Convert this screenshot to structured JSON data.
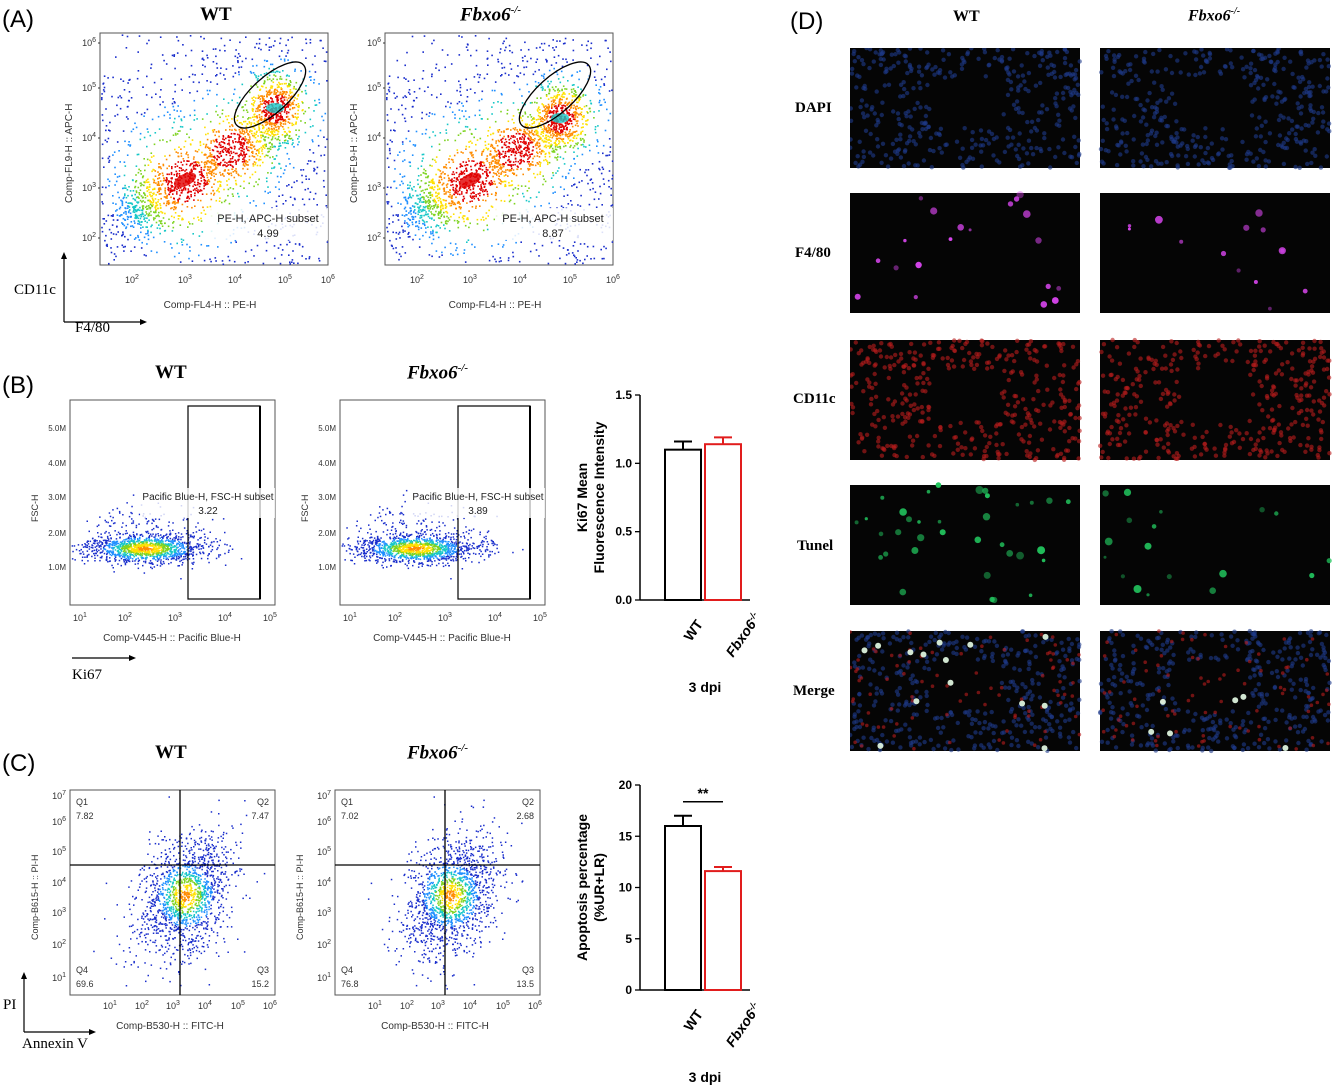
{
  "panels": {
    "A": {
      "letter": "(A)",
      "titles": [
        "WT",
        "Fbxo6"
      ],
      "title_superscript": "-/-",
      "ylabel": "Comp-FL9-H :: APC-H",
      "xlabel": "Comp-FL4-H :: PE-H",
      "yticks": [
        "10",
        "10",
        "10",
        "10",
        "10"
      ],
      "ytick_exp": [
        "6",
        "5",
        "4",
        "3",
        "2"
      ],
      "xticks_exp": [
        "2",
        "3",
        "4",
        "5",
        "6"
      ],
      "gate_name": "PE-H, APC-H subset",
      "gate_values": [
        "4.99",
        "8.87"
      ],
      "marker_y": "CD11c",
      "marker_x": "F4/80"
    },
    "B": {
      "letter": "(B)",
      "titles": [
        "WT",
        "Fbxo6"
      ],
      "title_superscript": "-/-",
      "ylabel": "FSC-H",
      "xlabel": "Comp-V445-H :: Pacific Blue-H",
      "yticks": [
        "5.0M",
        "4.0M",
        "3.0M",
        "2.0M",
        "1.0M"
      ],
      "xticks_exp": [
        "1",
        "2",
        "3",
        "4",
        "5"
      ],
      "gate_name": "Pacific Blue-H, FSC-H subset",
      "gate_values": [
        "3.22",
        "3.89"
      ],
      "marker_x": "Ki67",
      "bar_ylabel_line1": "Ki67 Mean",
      "bar_ylabel_line2": "Fluorescence Intensity",
      "dpi": "3 dpi"
    },
    "C": {
      "letter": "(C)",
      "titles": [
        "WT",
        "Fbxo6"
      ],
      "title_superscript": "-/-",
      "ylabel": "Comp-B615-H :: PI-H",
      "xlabel": "Comp-B530-H :: FITC-H",
      "yticks_exp": [
        "7",
        "6",
        "5",
        "4",
        "3",
        "2",
        "1"
      ],
      "xticks_exp": [
        "1",
        "2",
        "3",
        "4",
        "5",
        "6"
      ],
      "quadrant_names": [
        "Q1",
        "Q2",
        "Q3",
        "Q4"
      ],
      "quadrants": [
        {
          "Q1": "7.82",
          "Q2": "7.47",
          "Q3": "15.2",
          "Q4": "69.6"
        },
        {
          "Q1": "7.02",
          "Q2": "2.68",
          "Q3": "13.5",
          "Q4": "76.8"
        }
      ],
      "marker_y": "PI",
      "marker_x": "Annexin V",
      "bar_ylabel_line1": "Apoptosis percentage",
      "bar_ylabel_line2": "(%UR+LR)",
      "significance": "**",
      "dpi": "3 dpi"
    },
    "D": {
      "letter": "(D)",
      "titles": [
        "WT",
        "Fbxo6"
      ],
      "title_superscript": "-/-",
      "rows": [
        "DAPI",
        "F4/80",
        "CD11c",
        "Tunel",
        "Merge"
      ],
      "row_colors": {
        "DAPI": "#1e3a8a",
        "F4/80": "#d946ef",
        "CD11c": "#b91c1c",
        "Tunel": "#22c55e"
      }
    }
  },
  "chart_data": [
    {
      "type": "bar",
      "categories": [
        "WT",
        "Fbxo6-/-"
      ],
      "values": [
        1.1,
        1.14
      ],
      "errors": [
        0.06,
        0.05
      ],
      "ylabel": "Ki67 Mean Fluorescence Intensity",
      "xlabel": "3 dpi",
      "ylim": [
        0,
        1.5
      ],
      "yticks": [
        "0.0",
        "0.5",
        "1.0",
        "1.5"
      ],
      "colors": [
        "#000000",
        "#e11d1d"
      ]
    },
    {
      "type": "bar",
      "categories": [
        "WT",
        "Fbxo6-/-"
      ],
      "values": [
        16.0,
        11.6
      ],
      "errors": [
        1.0,
        0.4
      ],
      "ylabel": "Apoptosis percentage (%UR+LR)",
      "xlabel": "3 dpi",
      "ylim": [
        0,
        20
      ],
      "yticks": [
        "0",
        "5",
        "10",
        "15",
        "20"
      ],
      "annotation": "**",
      "colors": [
        "#000000",
        "#e11d1d"
      ]
    }
  ]
}
